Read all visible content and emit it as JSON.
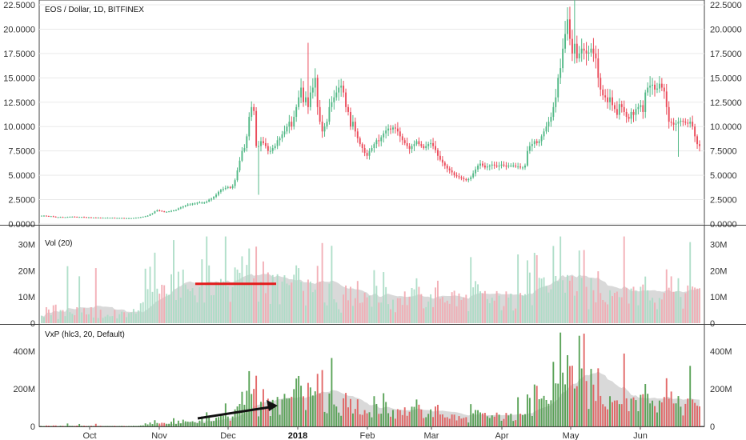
{
  "chart_data": [
    {
      "type": "candlestick",
      "title": "EOS / Dollar, 1D, BITFINEX",
      "ylim": [
        0,
        22.5
      ],
      "y_ticks": [
        "0.0000",
        "2.5000",
        "5.0000",
        "7.5000",
        "10.0000",
        "12.5000",
        "15.0000",
        "17.5000",
        "20.0000",
        "22.5000"
      ],
      "x_ticks": [
        "Oct",
        "Nov",
        "Dec",
        "2018",
        "Feb",
        "Mar",
        "Apr",
        "May",
        "Jun"
      ],
      "close_series": [
        0.85,
        0.85,
        0.82,
        0.8,
        0.8,
        0.75,
        0.7,
        0.7,
        0.72,
        0.7,
        0.7,
        0.72,
        0.74,
        0.75,
        0.74,
        0.72,
        0.72,
        0.72,
        0.7,
        0.68,
        0.68,
        0.66,
        0.66,
        0.65,
        0.65,
        0.64,
        0.64,
        0.64,
        0.64,
        0.64,
        0.64,
        0.62,
        0.62,
        0.62,
        0.62,
        0.6,
        0.6,
        0.6,
        0.6,
        0.62,
        0.64,
        0.66,
        0.7,
        0.75,
        0.8,
        0.85,
        1.0,
        1.1,
        1.3,
        1.4,
        1.35,
        1.3,
        1.25,
        1.25,
        1.3,
        1.35,
        1.4,
        1.45,
        1.6,
        1.7,
        1.8,
        1.9,
        2.0,
        2.0,
        2.1,
        2.1,
        2.2,
        2.2,
        2.2,
        2.2,
        2.3,
        2.5,
        2.6,
        2.8,
        3.0,
        3.3,
        3.5,
        3.6,
        3.7,
        3.8,
        3.7,
        3.9,
        4.5,
        5.5,
        6.5,
        7.5,
        7.8,
        9.0,
        11.0,
        12.0,
        11.6,
        8.0,
        8.0,
        8.5,
        8.3,
        8.0,
        7.5,
        7.5,
        7.8,
        8.0,
        8.6,
        8.8,
        9.2,
        9.5,
        10.0,
        10.5,
        10.0,
        11.0,
        12.0,
        13.0,
        14.0,
        12.5,
        13.0,
        12.0,
        13.5,
        14.0,
        15.0,
        12.0,
        10.5,
        9.5,
        10.0,
        10.5,
        12.0,
        12.5,
        13.0,
        13.5,
        14.0,
        14.2,
        13.5,
        12.0,
        11.5,
        10.0,
        10.5,
        9.5,
        8.8,
        8.2,
        7.8,
        7.3,
        7.0,
        7.5,
        7.8,
        8.2,
        8.6,
        8.5,
        8.9,
        9.3,
        9.6,
        9.8,
        9.7,
        9.9,
        9.8,
        9.5,
        9.0,
        8.6,
        8.3,
        8.0,
        7.7,
        8.0,
        8.2,
        8.5,
        8.2,
        8.0,
        7.8,
        8.0,
        8.2,
        8.3,
        8.0,
        7.6,
        7.0,
        6.6,
        6.3,
        6.0,
        5.7,
        5.5,
        5.3,
        5.0,
        4.9,
        4.8,
        4.7,
        4.6,
        4.5,
        4.6,
        4.8,
        5.2,
        5.6,
        6.0,
        6.2,
        6.0,
        5.8,
        5.9,
        6.0,
        6.1,
        6.0,
        5.9,
        6.0,
        6.1,
        6.0,
        5.9,
        6.0,
        6.0,
        6.0,
        5.9,
        5.9,
        5.8,
        5.8,
        6.0,
        7.5,
        8.0,
        8.2,
        8.5,
        8.3,
        8.5,
        9.0,
        9.5,
        10.0,
        10.5,
        11.0,
        12.0,
        13.0,
        15.0,
        16.0,
        18.0,
        19.5,
        21.0,
        19.0,
        17.5,
        18.5,
        17.0,
        17.5,
        18.0,
        17.8,
        17.5,
        17.6,
        18.0,
        17.5,
        17.0,
        15.0,
        13.8,
        13.2,
        13.0,
        12.5,
        13.0,
        12.2,
        11.8,
        11.2,
        12.3,
        12.0,
        11.5,
        11.0,
        10.8,
        11.5,
        11.2,
        11.8,
        12.0,
        12.2,
        11.5,
        13.5,
        14.0,
        14.2,
        14.3,
        13.8,
        13.9,
        14.4,
        14.0,
        13.6,
        12.0,
        10.5,
        10.4,
        10.2,
        10.3,
        10.5,
        10.6,
        10.5,
        10.4,
        10.3,
        10.5,
        10.0,
        9.0,
        8.2,
        8.0
      ],
      "annotations": [
        {
          "type": "horizontal line",
          "color": "#e31b1b",
          "y_value": "15M",
          "panel": "Vol (20)",
          "from": "mid-Nov",
          "to": "late-Dec"
        },
        {
          "type": "arrow",
          "color": "#111111",
          "panel": "VxP (hlc3, 20, Default)",
          "from": "mid-Nov",
          "to": "late-Dec"
        }
      ]
    },
    {
      "type": "bar",
      "title": "Vol (20)",
      "ylim": [
        0,
        35
      ],
      "unit": "M",
      "y_ticks": [
        "0",
        "10M",
        "20M",
        "30M"
      ],
      "ma_length": 20
    },
    {
      "type": "bar",
      "title": "VxP (hlc3, 20, Default)",
      "ylim": [
        0,
        520
      ],
      "unit": "M",
      "y_ticks": [
        "0",
        "200M",
        "400M"
      ],
      "ma_length": 20
    }
  ],
  "colors": {
    "up": "#53b987",
    "down": "#eb4d5c",
    "vol_up": "#a8dcc4",
    "vol_down": "#f2a8b0",
    "vxp_up": "#4a9a48",
    "vxp_down": "#e05a5a",
    "ma_area": "#cfcfcf",
    "grid": "#e9e9e9",
    "axis": "#555555"
  }
}
